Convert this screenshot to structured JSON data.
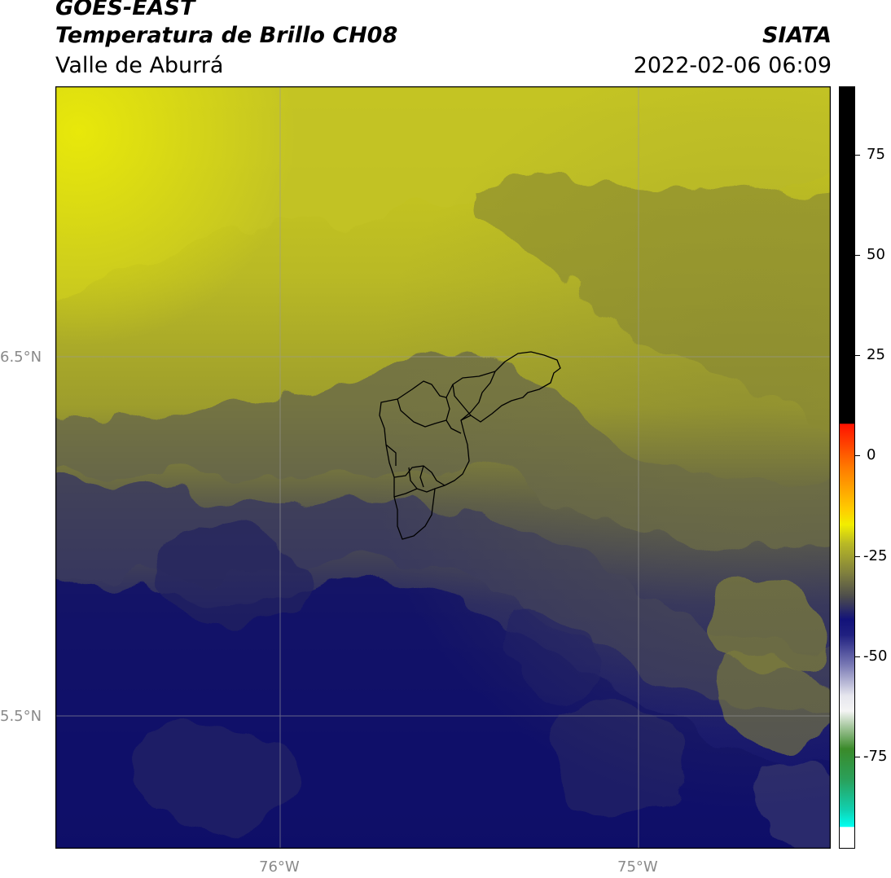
{
  "header": {
    "satellite": "GOES-EAST",
    "product": "Temperatura de Brillo CH08",
    "region": "Valle de Aburrá",
    "organization": "SIATA",
    "timestamp": "2022-02-06 06:09"
  },
  "map": {
    "lat_labels": [
      "6.5°N",
      "5.5°N"
    ],
    "lon_labels": [
      "76°W",
      "75°W"
    ],
    "boundary_overlay": "Valle de Aburrá municipalities"
  },
  "colorbar": {
    "ticks": [
      "75",
      "50",
      "25",
      "0",
      "-25",
      "-50",
      "-75"
    ],
    "colors": {
      "black": "#000000",
      "red": "#ff1a00",
      "orange": "#ff8c00",
      "yellow": "#ffee00",
      "olive": "#8a8a2a",
      "navy": "#0b0b6e",
      "white": "#ffffff",
      "green": "#2f8a2f",
      "cyan": "#00ffee"
    }
  }
}
